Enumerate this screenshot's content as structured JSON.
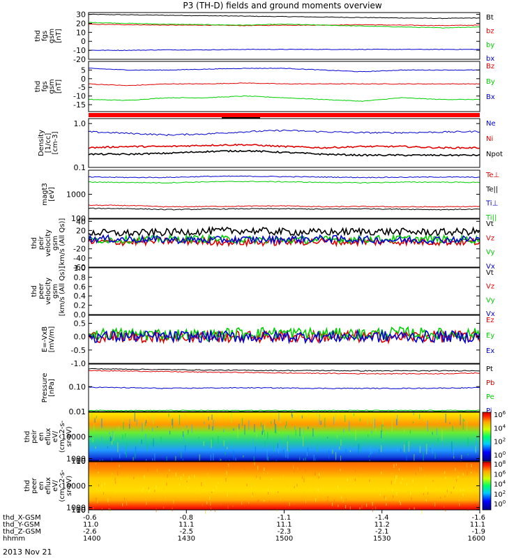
{
  "title": "P3 (TH-D) fields and ground moments overview",
  "date": "2013 Nov 21",
  "colors": {
    "black": "#000000",
    "red": "#e00000",
    "green": "#00d000",
    "blue": "#0000d0"
  },
  "chart_data": [
    {
      "id": "bgsm",
      "type": "line",
      "ylabel": [
        "thd",
        "fgs",
        "gsm",
        "[nT]"
      ],
      "ylim": [
        -20,
        32
      ],
      "ticks": [
        -20,
        -10,
        0,
        10,
        20,
        30
      ],
      "series": [
        {
          "name": "Bt",
          "color": "black",
          "values": [
            30,
            29.5,
            29,
            28.5,
            28,
            27.5,
            27,
            26.5,
            26,
            25.5,
            26
          ]
        },
        {
          "name": "bz",
          "color": "red",
          "values": [
            19,
            18.5,
            18,
            18,
            17.5,
            18,
            18,
            18.5,
            18,
            17.5,
            18
          ]
        },
        {
          "name": "by",
          "color": "green",
          "values": [
            21,
            20,
            19,
            18.5,
            18,
            19,
            18,
            17,
            16,
            15,
            16
          ]
        },
        {
          "name": "bx",
          "color": "blue",
          "values": [
            -10,
            -10,
            -9.5,
            -9.5,
            -9,
            -9,
            -9,
            -9,
            -9,
            -9,
            -9
          ]
        }
      ]
    },
    {
      "id": "bgsm2",
      "type": "line",
      "ylabel": [
        "thd",
        "fgs",
        "gsm",
        "[nT]"
      ],
      "ylim": [
        -19,
        10
      ],
      "ticks": [
        -15,
        -10,
        -5,
        0,
        5
      ],
      "series": [
        {
          "name": "Bz",
          "color": "red",
          "values": [
            -3,
            -4,
            -3,
            -3,
            -2.5,
            -3,
            -3,
            -3,
            -3,
            -3,
            -3
          ]
        },
        {
          "name": "By",
          "color": "green",
          "values": [
            -12,
            -12.5,
            -11,
            -11,
            -10,
            -11,
            -12,
            -13,
            -11,
            -12,
            -12
          ]
        },
        {
          "name": "Bx",
          "color": "blue",
          "values": [
            6,
            5,
            5,
            5.5,
            6,
            6,
            5,
            4,
            5,
            5,
            5
          ]
        }
      ]
    },
    {
      "id": "dens",
      "type": "line",
      "log": true,
      "ylabel": [
        "Density",
        "[1/cc]",
        "[cm-3]"
      ],
      "ylim": [
        0.1,
        1.3
      ],
      "ticks": [
        0.1,
        1.0
      ],
      "ticklabels": [
        "0.1",
        "1.0"
      ],
      "series": [
        {
          "name": "Ne",
          "color": "blue",
          "values": [
            0.65,
            0.6,
            0.55,
            0.58,
            0.65,
            0.7,
            0.65,
            0.62,
            0.62,
            0.64,
            0.66
          ]
        },
        {
          "name": "Ni",
          "color": "red",
          "values": [
            0.28,
            0.3,
            0.3,
            0.32,
            0.33,
            0.3,
            0.28,
            0.3,
            0.3,
            0.28,
            0.28
          ]
        },
        {
          "name": "Npot",
          "color": "black",
          "values": [
            0.2,
            0.2,
            0.21,
            0.23,
            0.24,
            0.22,
            0.2,
            0.19,
            0.19,
            0.19,
            0.19
          ]
        }
      ]
    },
    {
      "id": "temp",
      "type": "line",
      "log": true,
      "ylabel": [
        "magt3",
        "[eV]"
      ],
      "ylim": [
        100,
        10000
      ],
      "ticks": [
        100,
        1000
      ],
      "ticklabels": [
        "100",
        "1000"
      ],
      "series": [
        {
          "name": "Te⊥",
          "color": "red",
          "values": [
            350,
            340,
            300,
            310,
            320,
            330,
            300,
            310,
            300,
            300,
            310
          ]
        },
        {
          "name": "Te||",
          "color": "black",
          "values": [
            260,
            255,
            230,
            240,
            250,
            250,
            240,
            250,
            240,
            230,
            240
          ]
        },
        {
          "name": "Ti⊥",
          "color": "blue",
          "values": [
            5200,
            5000,
            5000,
            5500,
            5600,
            5400,
            5200,
            5000,
            5100,
            5200,
            5100
          ]
        },
        {
          "name": "Ti||",
          "color": "green",
          "values": [
            3200,
            3100,
            3000,
            3300,
            3400,
            3300,
            3100,
            3000,
            3200,
            3200,
            3100
          ]
        }
      ]
    },
    {
      "id": "vi",
      "type": "line",
      "ylabel": [
        "thd",
        "peir",
        "velocity",
        "gsm",
        "[km/s (All Qs)]"
      ],
      "ylim": [
        -60,
        45
      ],
      "ticks": [
        -60,
        -40,
        -20,
        0,
        20,
        40
      ],
      "series": [
        {
          "name": "Vt",
          "color": "black",
          "values": [
            15,
            14,
            16,
            18,
            20,
            17,
            16,
            18,
            17,
            16,
            18
          ]
        },
        {
          "name": "Vz",
          "color": "red",
          "values": [
            -5,
            -5,
            -3,
            -4,
            -6,
            -5,
            -4,
            -5,
            -4,
            -5,
            -5
          ]
        },
        {
          "name": "Vy",
          "color": "green",
          "values": [
            0,
            0,
            1,
            2,
            0,
            -1,
            0,
            1,
            2,
            1,
            0
          ]
        },
        {
          "name": "Vx",
          "color": "blue",
          "values": [
            2,
            1,
            0,
            -1,
            0,
            1,
            2,
            0,
            -1,
            0,
            1
          ]
        }
      ]
    },
    {
      "id": "ve",
      "type": "line",
      "ylabel": [
        "thd",
        "peer",
        "velocity",
        "gsm",
        "[km/s (All Qs)]"
      ],
      "ylim": [
        0,
        1
      ],
      "ticks": [
        0,
        0.2,
        0.4,
        0.6,
        0.8,
        1.0
      ],
      "ticklabels": [
        "0.0",
        "0.2",
        "0.4",
        "0.6",
        "0.8",
        "1.0"
      ],
      "series": [
        {
          "name": "Vt",
          "color": "black",
          "values": []
        },
        {
          "name": "Vz",
          "color": "red",
          "values": []
        },
        {
          "name": "Vy",
          "color": "green",
          "values": []
        },
        {
          "name": "Vx",
          "color": "blue",
          "values": []
        }
      ]
    },
    {
      "id": "efield",
      "type": "line",
      "ylabel": [
        "E=-VxB",
        "[mV/m]"
      ],
      "ylim": [
        -1,
        0.8
      ],
      "ticks": [
        -1,
        -0.5,
        0,
        0.5
      ],
      "ticklabels": [
        "-1.0",
        "-0.5",
        "0.0",
        "0.5"
      ],
      "series": [
        {
          "name": "Ez",
          "color": "red",
          "values": [
            0,
            0,
            0,
            0,
            0,
            0,
            0,
            0,
            0,
            0,
            0
          ]
        },
        {
          "name": "Ey",
          "color": "green",
          "values": [
            0.1,
            0.1,
            0.1,
            0.05,
            0.15,
            0.15,
            0.1,
            0.1,
            0.15,
            0.1,
            0.1
          ]
        },
        {
          "name": "Ex",
          "color": "blue",
          "values": [
            0,
            0,
            0,
            0,
            0,
            0,
            0,
            0,
            0,
            0,
            0
          ]
        }
      ]
    },
    {
      "id": "press",
      "type": "line",
      "log": true,
      "ylabel": [
        "Pressure",
        "[nPa]"
      ],
      "ylim": [
        0.01,
        0.8
      ],
      "ticks": [
        0.01,
        0.1
      ],
      "ticklabels": [
        "0.01",
        "0.10"
      ],
      "series": [
        {
          "name": "Pt",
          "color": "black",
          "values": [
            0.52,
            0.5,
            0.48,
            0.46,
            0.45,
            0.44,
            0.44,
            0.43,
            0.43,
            0.43,
            0.44
          ]
        },
        {
          "name": "Pb",
          "color": "red",
          "values": [
            0.44,
            0.42,
            0.4,
            0.38,
            0.37,
            0.35,
            0.34,
            0.33,
            0.33,
            0.33,
            0.35
          ]
        },
        {
          "name": "Pe",
          "color": "green",
          "values": [
            0.011,
            0.011,
            0.011,
            0.011,
            0.011,
            0.011,
            0.011,
            0.011,
            0.011,
            0.011,
            0.011
          ]
        },
        {
          "name": "Pi",
          "color": "blue",
          "values": [
            0.095,
            0.09,
            0.085,
            0.088,
            0.09,
            0.088,
            0.085,
            0.085,
            0.085,
            0.087,
            0.09
          ]
        }
      ]
    },
    {
      "id": "ispec",
      "type": "heatmap",
      "ylabel": [
        "thd",
        "peir",
        "en",
        "eflux",
        "eV/",
        "(cm^2-s-",
        "sr-eV)"
      ],
      "ylim": [
        6,
        20000
      ],
      "ticks": [
        10,
        100,
        1000,
        10000
      ],
      "ticklabels": [
        "10",
        "100",
        "1000",
        "10000"
      ],
      "colorbar": {
        "ticks": [
          "10^0",
          "10^2",
          "10^4",
          "10^6"
        ]
      }
    },
    {
      "id": "espec",
      "type": "heatmap",
      "ylabel": [
        "thd",
        "peer",
        "en",
        "eflux",
        "eV/",
        "(cm^2-s-",
        "sr-eV)"
      ],
      "ylim": [
        6,
        20000
      ],
      "ticks": [
        10,
        100,
        1000,
        10000
      ],
      "ticklabels": [
        "10",
        "100",
        "1000",
        "10000"
      ],
      "colorbar": {
        "ticks": [
          "10^0",
          "10^2",
          "10^4",
          "10^6",
          "10^8"
        ]
      }
    }
  ],
  "xaxis": {
    "row_labels": [
      "thd_X-GSM",
      "thd_Y-GSM",
      "thd_Z-GSM",
      "hhmm"
    ],
    "columns": [
      [
        "-0.6",
        "11.0",
        "-2.6",
        "1400"
      ],
      [
        "-0.8",
        "11.1",
        "-2.5",
        "1430"
      ],
      [
        "-1.1",
        "11.1",
        "-2.3",
        "1500"
      ],
      [
        "-1.4",
        "11.2",
        "-2.1",
        "1530"
      ],
      [
        "-1.6",
        "11.1",
        "-1.9",
        "1600"
      ]
    ]
  }
}
